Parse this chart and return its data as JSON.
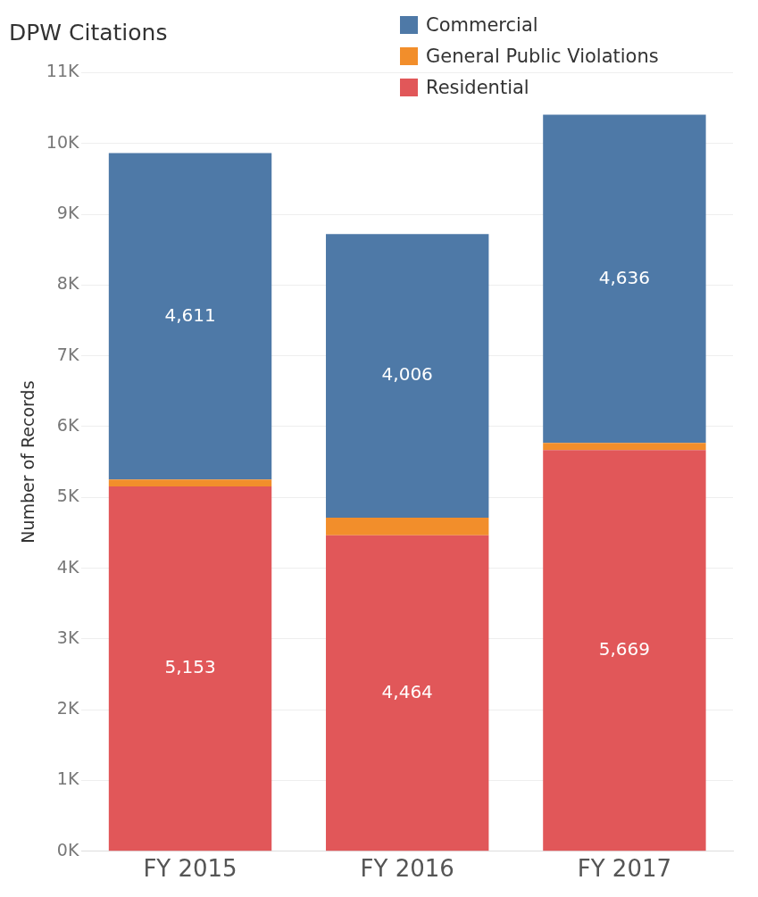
{
  "chart_data": {
    "type": "bar",
    "title": "DPW Citations",
    "ylabel": "Number of Records",
    "categories": [
      "FY 2015",
      "FY 2016",
      "FY 2017"
    ],
    "stacked": true,
    "series": [
      {
        "name": "Residential",
        "color": "#e15759",
        "values": [
          5153,
          4464,
          5669
        ],
        "value_labels": [
          "5,153",
          "4,464",
          "5,669"
        ]
      },
      {
        "name": "General Public Violations",
        "color": "#f28e2b",
        "values": [
          100,
          250,
          100
        ]
      },
      {
        "name": "Commercial",
        "color": "#4e79a7",
        "values": [
          4611,
          4006,
          4636
        ],
        "value_labels": [
          "4,611",
          "4,006",
          "4,636"
        ]
      }
    ],
    "ylim": [
      0,
      11000
    ],
    "yticks": [
      {
        "value": 0,
        "label": "0K"
      },
      {
        "value": 1000,
        "label": "1K"
      },
      {
        "value": 2000,
        "label": "2K"
      },
      {
        "value": 3000,
        "label": "3K"
      },
      {
        "value": 4000,
        "label": "4K"
      },
      {
        "value": 5000,
        "label": "5K"
      },
      {
        "value": 6000,
        "label": "6K"
      },
      {
        "value": 7000,
        "label": "7K"
      },
      {
        "value": 8000,
        "label": "8K"
      },
      {
        "value": 9000,
        "label": "9K"
      },
      {
        "value": 10000,
        "label": "10K"
      },
      {
        "value": 11000,
        "label": "11K"
      }
    ],
    "grid": "y",
    "legend": "top right"
  }
}
